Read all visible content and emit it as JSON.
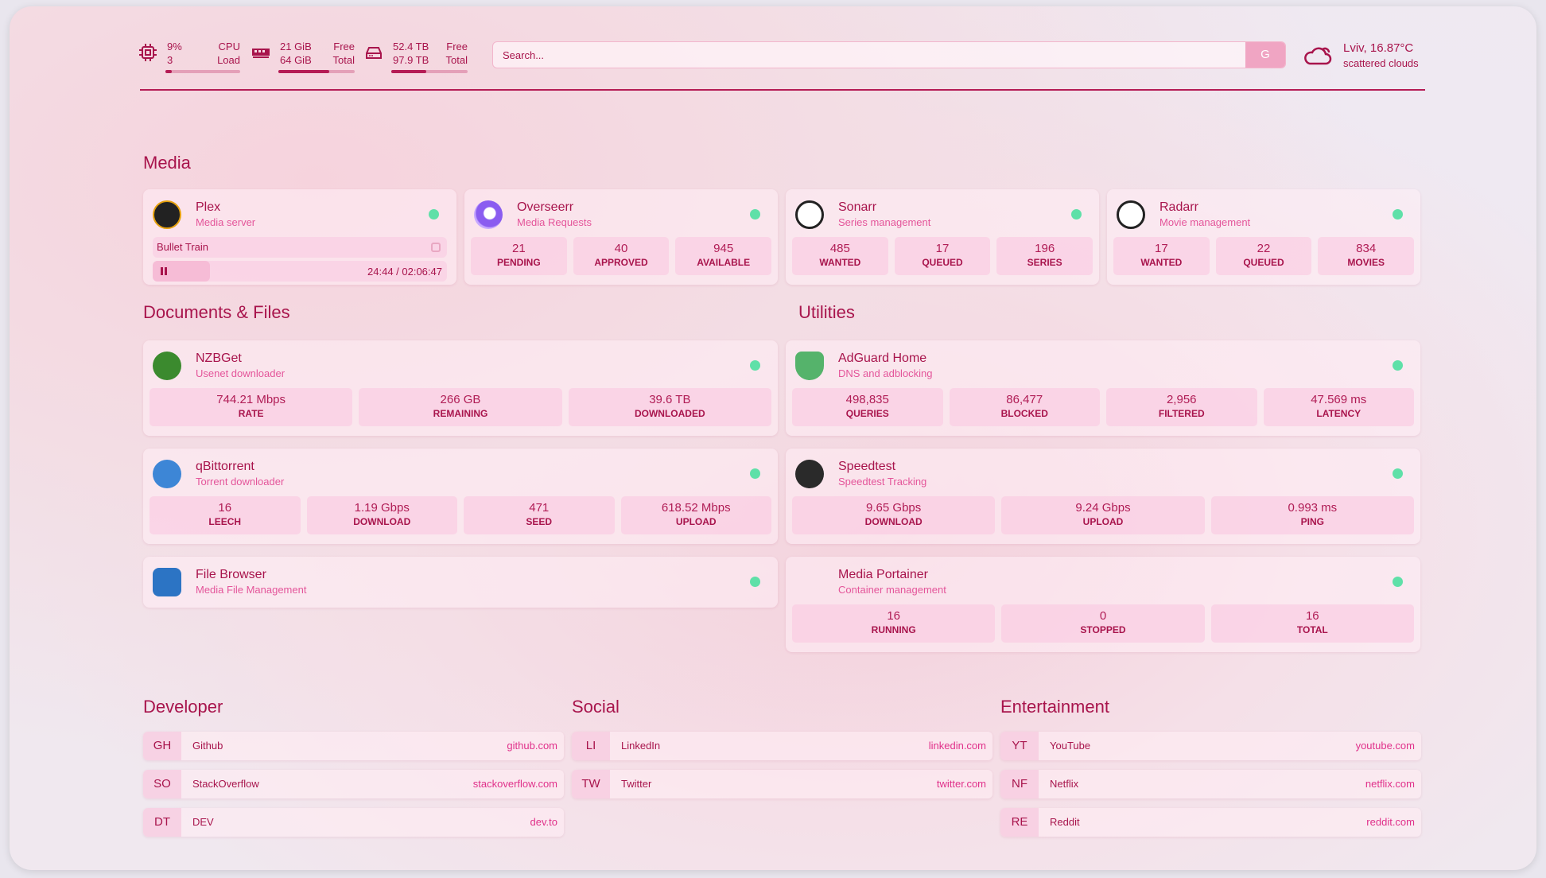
{
  "resources": {
    "cpu": {
      "icon": "cpu-icon",
      "value": "9%",
      "sub": "3",
      "label1": "CPU",
      "label2": "Load",
      "percent": 9
    },
    "memory": {
      "icon": "memory-icon",
      "value": "21 GiB",
      "sub": "64 GiB",
      "label1": "Free",
      "label2": "Total",
      "percent": 67
    },
    "disk": {
      "icon": "disk-icon",
      "value": "52.4 TB",
      "sub": "97.9 TB",
      "label1": "Free",
      "label2": "Total",
      "percent": 46
    }
  },
  "search": {
    "placeholder": "Search...",
    "button": "G"
  },
  "weather": {
    "icon": "cloud-icon",
    "location_temp": "Lviv, 16.87°C",
    "condition": "scattered clouds"
  },
  "colors": {
    "accent": "#a8144c",
    "subtitle": "#e4559a",
    "status_ok": "#5fe0a8"
  },
  "groups": {
    "media": "Media",
    "docs": "Documents & Files",
    "utilities": "Utilities",
    "developer": "Developer",
    "social": "Social",
    "entertainment": "Entertainment"
  },
  "plex": {
    "name": "Plex",
    "desc": "Media server",
    "title": "Bullet Train",
    "time": "24:44 / 02:06:47",
    "progress_percent": 19.5
  },
  "media": [
    {
      "name": "Overseerr",
      "desc": "Media Requests",
      "icon": "overseerr-icon",
      "stats": [
        {
          "v": "21",
          "k": "PENDING"
        },
        {
          "v": "40",
          "k": "APPROVED"
        },
        {
          "v": "945",
          "k": "AVAILABLE"
        }
      ]
    },
    {
      "name": "Sonarr",
      "desc": "Series management",
      "icon": "sonarr-icon",
      "stats": [
        {
          "v": "485",
          "k": "WANTED"
        },
        {
          "v": "17",
          "k": "QUEUED"
        },
        {
          "v": "196",
          "k": "SERIES"
        }
      ]
    },
    {
      "name": "Radarr",
      "desc": "Movie management",
      "icon": "radarr-icon",
      "stats": [
        {
          "v": "17",
          "k": "WANTED"
        },
        {
          "v": "22",
          "k": "QUEUED"
        },
        {
          "v": "834",
          "k": "MOVIES"
        }
      ]
    }
  ],
  "docs": [
    {
      "name": "NZBGet",
      "desc": "Usenet downloader",
      "icon": "nzbget-icon",
      "stats": [
        {
          "v": "744.21 Mbps",
          "k": "RATE"
        },
        {
          "v": "266 GB",
          "k": "REMAINING"
        },
        {
          "v": "39.6 TB",
          "k": "DOWNLOADED"
        }
      ]
    },
    {
      "name": "qBittorrent",
      "desc": "Torrent downloader",
      "icon": "qbittorrent-icon",
      "stats": [
        {
          "v": "16",
          "k": "LEECH"
        },
        {
          "v": "1.19 Gbps",
          "k": "DOWNLOAD"
        },
        {
          "v": "471",
          "k": "SEED"
        },
        {
          "v": "618.52 Mbps",
          "k": "UPLOAD"
        }
      ]
    },
    {
      "name": "File Browser",
      "desc": "Media File Management",
      "icon": "file-browser-icon",
      "stats": []
    }
  ],
  "utilities": [
    {
      "name": "AdGuard Home",
      "desc": "DNS and adblocking",
      "icon": "adguard-icon",
      "stats": [
        {
          "v": "498,835",
          "k": "QUERIES"
        },
        {
          "v": "86,477",
          "k": "BLOCKED"
        },
        {
          "v": "2,956",
          "k": "FILTERED"
        },
        {
          "v": "47.569 ms",
          "k": "LATENCY"
        }
      ]
    },
    {
      "name": "Speedtest",
      "desc": "Speedtest Tracking",
      "icon": "speedtest-icon",
      "stats": [
        {
          "v": "9.65 Gbps",
          "k": "DOWNLOAD"
        },
        {
          "v": "9.24 Gbps",
          "k": "UPLOAD"
        },
        {
          "v": "0.993 ms",
          "k": "PING"
        }
      ]
    },
    {
      "name": "Media Portainer",
      "desc": "Container management",
      "icon": "portainer-icon",
      "stats": [
        {
          "v": "16",
          "k": "RUNNING"
        },
        {
          "v": "0",
          "k": "STOPPED"
        },
        {
          "v": "16",
          "k": "TOTAL"
        }
      ]
    }
  ],
  "bookmarks": {
    "developer": [
      {
        "abbr": "GH",
        "name": "Github",
        "url": "github.com"
      },
      {
        "abbr": "SO",
        "name": "StackOverflow",
        "url": "stackoverflow.com"
      },
      {
        "abbr": "DT",
        "name": "DEV",
        "url": "dev.to"
      }
    ],
    "social": [
      {
        "abbr": "LI",
        "name": "LinkedIn",
        "url": "linkedin.com"
      },
      {
        "abbr": "TW",
        "name": "Twitter",
        "url": "twitter.com"
      }
    ],
    "entertainment": [
      {
        "abbr": "YT",
        "name": "YouTube",
        "url": "youtube.com"
      },
      {
        "abbr": "NF",
        "name": "Netflix",
        "url": "netflix.com"
      },
      {
        "abbr": "RE",
        "name": "Reddit",
        "url": "reddit.com"
      }
    ]
  }
}
